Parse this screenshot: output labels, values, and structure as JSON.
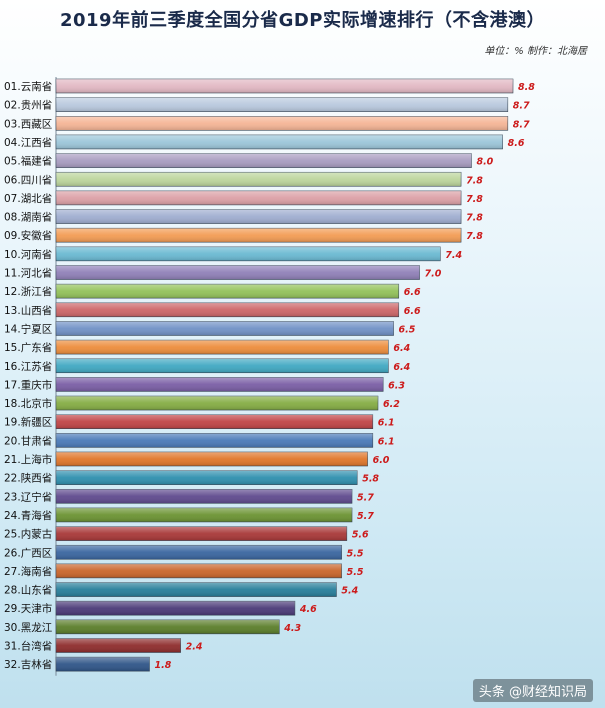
{
  "page": {
    "title": "2019年前三季度全国分省GDP实际增速排行（不含港澳）",
    "subtitle": "单位：%  制作：北海居",
    "watermark": "头条 @财经知识局"
  },
  "chart_data": {
    "type": "bar",
    "orientation": "horizontal",
    "title": "2019年前三季度全国分省GDP实际增速排行（不含港澳）",
    "xlim": [
      0,
      9
    ],
    "grid": false,
    "legend": "none",
    "categories": [
      "01.云南省",
      "02.贵州省",
      "03.西藏区",
      "04.江西省",
      "05.福建省",
      "06.四川省",
      "07.湖北省",
      "08.湖南省",
      "09.安徽省",
      "10.河南省",
      "11.河北省",
      "12.浙江省",
      "13.山西省",
      "14.宁夏区",
      "15.广东省",
      "16.江苏省",
      "17.重庆市",
      "18.北京市",
      "19.新疆区",
      "20.甘肃省",
      "21.上海市",
      "22.陕西省",
      "23.辽宁省",
      "24.青海省",
      "25.内蒙古",
      "26.广西区",
      "27.海南省",
      "28.山东省",
      "29.天津市",
      "30.黑龙江",
      "31.台湾省",
      "32.吉林省"
    ],
    "values": [
      8.8,
      8.7,
      8.7,
      8.6,
      8.0,
      7.8,
      7.8,
      7.8,
      7.8,
      7.4,
      7.0,
      6.6,
      6.6,
      6.5,
      6.4,
      6.4,
      6.3,
      6.2,
      6.1,
      6.1,
      6.0,
      5.8,
      5.7,
      5.7,
      5.6,
      5.5,
      5.5,
      5.4,
      4.6,
      4.3,
      2.4,
      1.8
    ],
    "value_labels": [
      "8.8",
      "8.7",
      "8.7",
      "8.6",
      "8.0",
      "7.8",
      "7.8",
      "7.8",
      "7.8",
      "7.4",
      "7.0",
      "6.6",
      "6.6",
      "6.5",
      "6.4",
      "6.4",
      "6.3",
      "6.2",
      "6.1",
      "6.1",
      "6.0",
      "5.8",
      "5.7",
      "5.7",
      "5.6",
      "5.5",
      "5.5",
      "5.4",
      "4.6",
      "4.3",
      "2.4",
      "1.8"
    ],
    "colors": [
      "#e2b8c3",
      "#b9c9de",
      "#f5b596",
      "#9cc6d9",
      "#a89cc0",
      "#bcd59c",
      "#dca0a6",
      "#9fadd0",
      "#f39c54",
      "#6ab9d2",
      "#9080b8",
      "#93c25a",
      "#cd6668",
      "#7191c6",
      "#ed8d3c",
      "#40a8c2",
      "#7a5ea5",
      "#85ad44",
      "#c04446",
      "#4a7ab8",
      "#e0762a",
      "#2e8fae",
      "#5f4a8e",
      "#6b9332",
      "#a83838",
      "#3a66a0",
      "#c9652a",
      "#277e9a",
      "#4b3a78",
      "#5b7e2a",
      "#8e2c2c",
      "#2f5588"
    ],
    "value_label_color": "#cc1a1a"
  }
}
